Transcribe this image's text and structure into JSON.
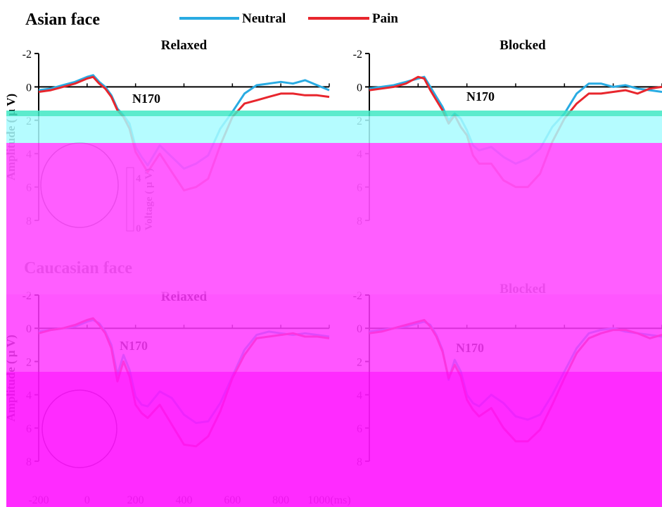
{
  "header": {
    "section1": "Asian face",
    "section2": "Caucasian face",
    "legend": [
      {
        "label": "Neutral",
        "color": "#29abe2"
      },
      {
        "label": "Pain",
        "color": "#e8262d"
      }
    ]
  },
  "overlay_colors": {
    "band": "#40e8c4",
    "cyan": "#a8fbff",
    "magenta1": "#ff50ff",
    "magenta2": "#ff38ff",
    "magenta3": "#ff19ff"
  },
  "chart_data": [
    {
      "type": "line",
      "title": "Relaxed",
      "group": "Asian face",
      "ylabel": "Amplitude ( μ V)",
      "xlim": [
        -200,
        1000
      ],
      "ylim": [
        -2,
        8
      ],
      "y_inverted": true,
      "xticks": [],
      "yticks": [
        "-2",
        "0",
        "2",
        "4",
        "6",
        "8"
      ],
      "annotation": "N170",
      "colorbar": {
        "label": "Voltage ( μ V)",
        "ticks": [
          "4",
          "0"
        ]
      },
      "series": [
        {
          "name": "Neutral",
          "color": "#29abe2",
          "x": [
            -200,
            -150,
            -100,
            -50,
            0,
            25,
            50,
            75,
            100,
            125,
            150,
            175,
            200,
            225,
            250,
            300,
            350,
            400,
            450,
            500,
            550,
            600,
            650,
            700,
            750,
            800,
            850,
            900,
            950,
            1000
          ],
          "y": [
            0.2,
            0.1,
            -0.1,
            -0.3,
            -0.6,
            -0.7,
            -0.3,
            0,
            0.5,
            1.3,
            1.7,
            2.2,
            3.6,
            4.2,
            4.7,
            3.5,
            4.2,
            4.9,
            4.6,
            4.1,
            2.5,
            1.5,
            0.4,
            -0.1,
            -0.2,
            -0.3,
            -0.2,
            -0.4,
            -0.1,
            0.2
          ]
        },
        {
          "name": "Pain",
          "color": "#e8262d",
          "x": [
            -200,
            -150,
            -100,
            -50,
            0,
            25,
            50,
            75,
            100,
            125,
            150,
            175,
            200,
            225,
            250,
            300,
            350,
            400,
            450,
            500,
            550,
            600,
            650,
            700,
            750,
            800,
            850,
            900,
            950,
            1000
          ],
          "y": [
            0.3,
            0.2,
            0,
            -0.2,
            -0.5,
            -0.6,
            -0.2,
            0.1,
            0.6,
            1.4,
            1.8,
            2.5,
            3.9,
            4.5,
            5.1,
            4.0,
            5.1,
            6.2,
            6.0,
            5.5,
            3.5,
            1.8,
            1.0,
            0.8,
            0.6,
            0.4,
            0.4,
            0.5,
            0.5,
            0.6
          ]
        }
      ]
    },
    {
      "type": "line",
      "title": "Blocked",
      "group": "Asian face",
      "ylabel": "",
      "xlim": [
        -200,
        1000
      ],
      "ylim": [
        -2,
        8
      ],
      "y_inverted": true,
      "xticks": [],
      "yticks": [
        "-2",
        "0",
        "2",
        "4",
        "6",
        "8"
      ],
      "annotation": "N170",
      "series": [
        {
          "name": "Neutral",
          "color": "#29abe2",
          "x": [
            -200,
            -150,
            -100,
            -50,
            0,
            25,
            50,
            75,
            100,
            125,
            150,
            175,
            200,
            225,
            250,
            300,
            350,
            400,
            450,
            500,
            550,
            600,
            650,
            700,
            750,
            800,
            850,
            900,
            950,
            1000
          ],
          "y": [
            0.1,
            0,
            -0.1,
            -0.3,
            -0.5,
            -0.6,
            0,
            0.6,
            1.2,
            2.0,
            1.6,
            1.9,
            2.6,
            3.5,
            3.8,
            3.6,
            4.2,
            4.6,
            4.3,
            3.7,
            2.4,
            1.6,
            0.4,
            -0.2,
            -0.2,
            0,
            -0.1,
            0.1,
            0.2,
            0.3
          ]
        },
        {
          "name": "Pain",
          "color": "#e8262d",
          "x": [
            -200,
            -150,
            -100,
            -50,
            0,
            25,
            50,
            75,
            100,
            125,
            150,
            175,
            200,
            225,
            250,
            300,
            350,
            400,
            450,
            500,
            550,
            600,
            650,
            700,
            750,
            800,
            850,
            900,
            950,
            1000
          ],
          "y": [
            0.2,
            0.1,
            0,
            -0.2,
            -0.6,
            -0.5,
            0.2,
            0.8,
            1.4,
            2.2,
            1.7,
            2.4,
            2.9,
            4.1,
            4.6,
            4.6,
            5.6,
            6.0,
            6.0,
            5.2,
            3.3,
            1.9,
            1.0,
            0.4,
            0.4,
            0.3,
            0.2,
            0.4,
            0.1,
            0.0
          ]
        }
      ]
    },
    {
      "type": "line",
      "title": "Relaxed",
      "group": "Caucasian face",
      "ylabel": "Amplitude ( μ V)",
      "xlim": [
        -200,
        1000
      ],
      "ylim": [
        -2,
        8
      ],
      "y_inverted": true,
      "xticks": [
        "-200",
        "0",
        "200",
        "400",
        "600",
        "800",
        "1000(ms)"
      ],
      "yticks": [
        "-2",
        "0",
        "2",
        "4",
        "6",
        "8"
      ],
      "annotation": "N170",
      "series": [
        {
          "name": "Neutral",
          "color": "#29abe2",
          "x": [
            -200,
            -150,
            -100,
            -50,
            0,
            25,
            50,
            75,
            100,
            125,
            150,
            175,
            200,
            225,
            250,
            300,
            350,
            400,
            450,
            500,
            550,
            600,
            650,
            700,
            750,
            800,
            850,
            900,
            950,
            1000
          ],
          "y": [
            0.2,
            0.1,
            0,
            -0.1,
            -0.4,
            -0.5,
            -0.3,
            0.2,
            1.0,
            2.8,
            1.6,
            2.5,
            4.1,
            4.6,
            4.7,
            3.8,
            4.2,
            5.2,
            5.7,
            5.6,
            4.5,
            2.9,
            1.3,
            0.4,
            0.2,
            0.3,
            0.4,
            0.3,
            0.4,
            0.5
          ]
        },
        {
          "name": "Pain",
          "color": "#e8262d",
          "x": [
            -200,
            -150,
            -100,
            -50,
            0,
            25,
            50,
            75,
            100,
            125,
            150,
            175,
            200,
            225,
            250,
            300,
            350,
            400,
            450,
            500,
            550,
            600,
            650,
            700,
            750,
            800,
            850,
            900,
            950,
            1000
          ],
          "y": [
            0.3,
            0.1,
            0,
            -0.2,
            -0.5,
            -0.6,
            -0.2,
            0.3,
            1.2,
            3.2,
            2.0,
            2.9,
            4.6,
            5.1,
            5.4,
            4.6,
            5.8,
            7.0,
            7.1,
            6.5,
            5.0,
            3.0,
            1.6,
            0.6,
            0.5,
            0.4,
            0.3,
            0.5,
            0.5,
            0.6
          ]
        }
      ]
    },
    {
      "type": "line",
      "title": "Blocked",
      "group": "Caucasian face",
      "ylabel": "",
      "xlim": [
        -200,
        1000
      ],
      "ylim": [
        -2,
        8
      ],
      "y_inverted": true,
      "xticks": [],
      "yticks": [
        "-2",
        "0",
        "2",
        "4",
        "6",
        "8"
      ],
      "annotation": "N170",
      "series": [
        {
          "name": "Neutral",
          "color": "#29abe2",
          "x": [
            -200,
            -150,
            -100,
            -50,
            0,
            25,
            50,
            75,
            100,
            125,
            150,
            175,
            200,
            225,
            250,
            300,
            350,
            400,
            450,
            500,
            550,
            600,
            650,
            700,
            750,
            800,
            850,
            900,
            950,
            1000
          ],
          "y": [
            0.2,
            0.1,
            0,
            -0.1,
            -0.3,
            -0.4,
            -0.2,
            0.4,
            1.3,
            3.1,
            1.9,
            2.6,
            4.0,
            4.5,
            4.7,
            4.0,
            4.5,
            5.3,
            5.5,
            5.2,
            4.0,
            2.6,
            1.2,
            0.3,
            0.1,
            0,
            0.2,
            0.3,
            0.4,
            0.5
          ]
        },
        {
          "name": "Pain",
          "color": "#e8262d",
          "x": [
            -200,
            -150,
            -100,
            -50,
            0,
            25,
            50,
            75,
            100,
            125,
            150,
            175,
            200,
            225,
            250,
            300,
            350,
            400,
            450,
            500,
            550,
            600,
            650,
            700,
            750,
            800,
            850,
            900,
            950,
            1000
          ],
          "y": [
            0.3,
            0.2,
            0,
            -0.2,
            -0.4,
            -0.5,
            -0.1,
            0.5,
            1.4,
            3.0,
            2.2,
            2.9,
            4.3,
            4.9,
            5.3,
            4.8,
            6.0,
            6.8,
            6.8,
            6.1,
            4.6,
            3.0,
            1.5,
            0.6,
            0.3,
            0.1,
            0.1,
            0.3,
            0.6,
            0.4
          ]
        }
      ]
    }
  ]
}
